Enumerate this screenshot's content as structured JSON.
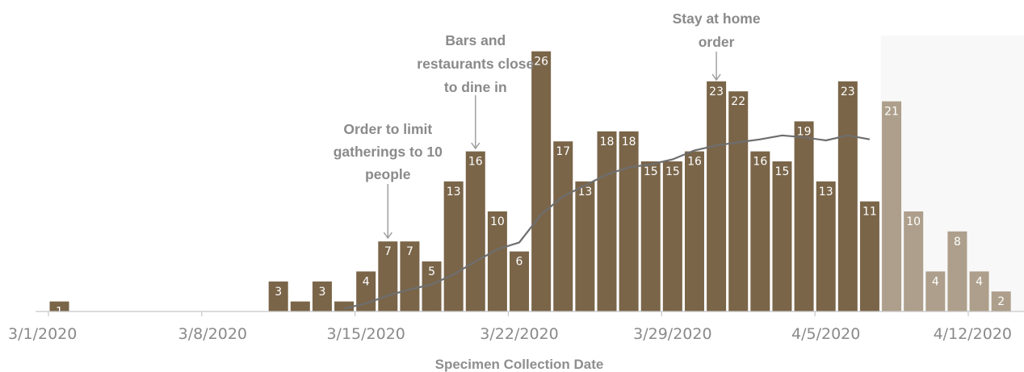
{
  "chart_data": {
    "type": "bar",
    "xlabel": "Specimen Collection Date",
    "ylabel": "",
    "ylim": [
      0,
      26
    ],
    "grid": false,
    "legend": "none",
    "x_ticks": [
      "3/1/2020",
      "3/8/2020",
      "3/15/2020",
      "3/22/2020",
      "3/29/2020",
      "4/5/2020",
      "4/12/2020"
    ],
    "dates": [
      "3/1",
      "3/2",
      "3/3",
      "3/4",
      "3/5",
      "3/6",
      "3/7",
      "3/8",
      "3/9",
      "3/10",
      "3/11",
      "3/12",
      "3/13",
      "3/14",
      "3/15",
      "3/16",
      "3/17",
      "3/18",
      "3/19",
      "3/20",
      "3/21",
      "3/22",
      "3/23",
      "3/24",
      "3/25",
      "3/26",
      "3/27",
      "3/28",
      "3/29",
      "3/30",
      "3/31",
      "4/1",
      "4/2",
      "4/3",
      "4/4",
      "4/5",
      "4/6",
      "4/7",
      "4/8",
      "4/9",
      "4/10",
      "4/11",
      "4/12",
      "4/13"
    ],
    "values": [
      1,
      0,
      0,
      0,
      0,
      0,
      0,
      0,
      0,
      0,
      3,
      1,
      3,
      1,
      4,
      7,
      7,
      5,
      13,
      16,
      10,
      6,
      26,
      17,
      13,
      18,
      18,
      15,
      15,
      16,
      23,
      22,
      16,
      15,
      19,
      13,
      23,
      11,
      21,
      10,
      4,
      8,
      4,
      2
    ],
    "data_labels": [
      "1",
      "",
      "",
      "",
      "",
      "",
      "",
      "",
      "",
      "",
      "3",
      "",
      "3",
      "",
      "4",
      "7",
      "7",
      "5",
      "13",
      "16",
      "10",
      "6",
      "26",
      "17",
      "13",
      "18",
      "18",
      "15",
      "15",
      "16",
      "23",
      "22",
      "16",
      "15",
      "19",
      "13",
      "23",
      "11",
      "21",
      "10",
      "4",
      "8",
      "4",
      "2"
    ],
    "moving_average": [
      {
        "date": "3/14",
        "value": 0.3
      },
      {
        "date": "3/15",
        "value": 0.8
      },
      {
        "date": "3/16",
        "value": 1.6
      },
      {
        "date": "3/17",
        "value": 2.2
      },
      {
        "date": "3/18",
        "value": 2.7
      },
      {
        "date": "3/19",
        "value": 3.7
      },
      {
        "date": "3/20",
        "value": 5.0
      },
      {
        "date": "3/21",
        "value": 6.2
      },
      {
        "date": "3/22",
        "value": 6.9
      },
      {
        "date": "3/23",
        "value": 9.7
      },
      {
        "date": "3/24",
        "value": 11.5
      },
      {
        "date": "3/25",
        "value": 12.6
      },
      {
        "date": "3/26",
        "value": 13.7
      },
      {
        "date": "3/27",
        "value": 14.4
      },
      {
        "date": "3/28",
        "value": 14.7
      },
      {
        "date": "3/29",
        "value": 15.2
      },
      {
        "date": "3/30",
        "value": 16.1
      },
      {
        "date": "3/31",
        "value": 16.6
      },
      {
        "date": "4/1",
        "value": 16.9
      },
      {
        "date": "4/2",
        "value": 17.2
      },
      {
        "date": "4/3",
        "value": 17.6
      },
      {
        "date": "4/4",
        "value": 17.4
      },
      {
        "date": "4/5",
        "value": 17.1
      },
      {
        "date": "4/6",
        "value": 17.6
      },
      {
        "date": "4/7",
        "value": 17.2
      }
    ],
    "incomplete_from": "4/8",
    "colors": {
      "bar": "#7a6549",
      "bar_incomplete": "#ad9f8b",
      "shaded_region": "#f8f8f8",
      "moving_average": "#6e6e6e",
      "text": "#8a8a8a",
      "arrow": "#9a9a9a"
    },
    "annotations": [
      {
        "lines": [
          "Order to limit",
          "gatherings to 10",
          "people"
        ],
        "date": "3/16"
      },
      {
        "lines": [
          "Bars and",
          "restaurants close",
          "to dine in"
        ],
        "date": "3/20"
      },
      {
        "lines": [
          "Stay at home",
          "order"
        ],
        "date": "3/31"
      }
    ]
  }
}
